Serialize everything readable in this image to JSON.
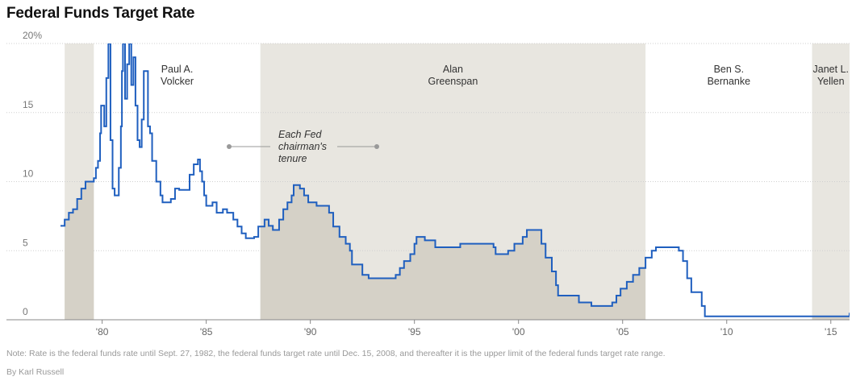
{
  "header": {
    "title": "Federal Funds Target Rate"
  },
  "chart_data": {
    "type": "line",
    "title": "Federal Funds Target Rate",
    "xlabel": "",
    "ylabel": "",
    "xlim": [
      1978.0,
      2015.9
    ],
    "ylim": [
      0,
      20
    ],
    "y_ticks": [
      {
        "value": 0,
        "label": "0"
      },
      {
        "value": 5,
        "label": "5"
      },
      {
        "value": 10,
        "label": "10"
      },
      {
        "value": 15,
        "label": "15"
      },
      {
        "value": 20,
        "label": "20%"
      }
    ],
    "x_ticks": [
      {
        "value": 1980,
        "label": "'80"
      },
      {
        "value": 1985,
        "label": "'85"
      },
      {
        "value": 1990,
        "label": "'90"
      },
      {
        "value": 1995,
        "label": "'95"
      },
      {
        "value": 2000,
        "label": "'00"
      },
      {
        "value": 2005,
        "label": "'05"
      },
      {
        "value": 2010,
        "label": "'10"
      },
      {
        "value": 2015,
        "label": "'15"
      }
    ],
    "tenures": [
      {
        "start": 1978.2,
        "end": 1979.6,
        "label": "",
        "shaded": true
      },
      {
        "start": 1979.6,
        "end": 1987.6,
        "label": "Paul A.\nVolcker",
        "shaded": false
      },
      {
        "start": 1987.6,
        "end": 2006.1,
        "label": "Alan\nGreenspan",
        "shaded": true
      },
      {
        "start": 2006.1,
        "end": 2014.1,
        "label": "Ben S.\nBernanke",
        "shaded": false
      },
      {
        "start": 2014.1,
        "end": 2015.9,
        "label": "Janet L.\nYellen",
        "shaded": true
      }
    ],
    "annotation": "Each Fed\nchairman's\ntenure",
    "series": [
      {
        "color": "#1f5fbf",
        "points": [
          [
            1978.0,
            6.8
          ],
          [
            1978.2,
            7.25
          ],
          [
            1978.4,
            7.75
          ],
          [
            1978.6,
            8.0
          ],
          [
            1978.8,
            8.75
          ],
          [
            1979.0,
            9.5
          ],
          [
            1979.2,
            10.0
          ],
          [
            1979.6,
            10.25
          ],
          [
            1979.7,
            11.0
          ],
          [
            1979.8,
            11.5
          ],
          [
            1979.9,
            13.5
          ],
          [
            1979.95,
            15.5
          ],
          [
            1980.1,
            14.0
          ],
          [
            1980.2,
            17.5
          ],
          [
            1980.3,
            20.0
          ],
          [
            1980.4,
            13.0
          ],
          [
            1980.5,
            9.5
          ],
          [
            1980.6,
            9.0
          ],
          [
            1980.8,
            11.0
          ],
          [
            1980.9,
            14.0
          ],
          [
            1980.95,
            18.0
          ],
          [
            1981.0,
            20.0
          ],
          [
            1981.1,
            16.0
          ],
          [
            1981.2,
            18.5
          ],
          [
            1981.3,
            20.0
          ],
          [
            1981.4,
            17.0
          ],
          [
            1981.5,
            19.0
          ],
          [
            1981.6,
            15.5
          ],
          [
            1981.7,
            13.0
          ],
          [
            1981.8,
            12.5
          ],
          [
            1981.9,
            14.5
          ],
          [
            1982.0,
            18.0
          ],
          [
            1982.2,
            14.0
          ],
          [
            1982.3,
            13.5
          ],
          [
            1982.4,
            11.5
          ],
          [
            1982.6,
            10.0
          ],
          [
            1982.8,
            9.0
          ],
          [
            1982.9,
            8.5
          ],
          [
            1983.3,
            8.75
          ],
          [
            1983.5,
            9.5
          ],
          [
            1983.7,
            9.4
          ],
          [
            1984.2,
            10.5
          ],
          [
            1984.4,
            11.25
          ],
          [
            1984.6,
            11.6
          ],
          [
            1984.7,
            10.75
          ],
          [
            1984.8,
            10.0
          ],
          [
            1984.9,
            9.0
          ],
          [
            1985.0,
            8.25
          ],
          [
            1985.3,
            8.5
          ],
          [
            1985.5,
            7.75
          ],
          [
            1985.8,
            8.0
          ],
          [
            1986.0,
            7.75
          ],
          [
            1986.3,
            7.25
          ],
          [
            1986.5,
            6.75
          ],
          [
            1986.7,
            6.25
          ],
          [
            1986.9,
            5.9
          ],
          [
            1987.3,
            6.0
          ],
          [
            1987.5,
            6.75
          ],
          [
            1987.8,
            7.25
          ],
          [
            1988.0,
            6.8
          ],
          [
            1988.2,
            6.5
          ],
          [
            1988.5,
            7.25
          ],
          [
            1988.7,
            8.0
          ],
          [
            1988.9,
            8.5
          ],
          [
            1989.1,
            9.0
          ],
          [
            1989.2,
            9.75
          ],
          [
            1989.5,
            9.5
          ],
          [
            1989.7,
            9.0
          ],
          [
            1989.9,
            8.5
          ],
          [
            1990.3,
            8.25
          ],
          [
            1990.9,
            7.75
          ],
          [
            1991.1,
            6.75
          ],
          [
            1991.4,
            6.0
          ],
          [
            1991.7,
            5.5
          ],
          [
            1991.9,
            5.0
          ],
          [
            1992.0,
            4.0
          ],
          [
            1992.5,
            3.25
          ],
          [
            1992.8,
            3.0
          ],
          [
            1994.1,
            3.25
          ],
          [
            1994.3,
            3.75
          ],
          [
            1994.5,
            4.25
          ],
          [
            1994.8,
            4.75
          ],
          [
            1995.0,
            5.5
          ],
          [
            1995.1,
            6.0
          ],
          [
            1995.5,
            5.75
          ],
          [
            1996.0,
            5.25
          ],
          [
            1997.2,
            5.5
          ],
          [
            1998.8,
            5.25
          ],
          [
            1998.9,
            4.75
          ],
          [
            1999.5,
            5.0
          ],
          [
            1999.8,
            5.5
          ],
          [
            2000.2,
            6.0
          ],
          [
            2000.4,
            6.5
          ],
          [
            2000.9,
            6.5
          ],
          [
            2001.1,
            5.5
          ],
          [
            2001.3,
            4.5
          ],
          [
            2001.6,
            3.5
          ],
          [
            2001.8,
            2.5
          ],
          [
            2001.9,
            1.75
          ],
          [
            2002.9,
            1.25
          ],
          [
            2003.5,
            1.0
          ],
          [
            2004.5,
            1.25
          ],
          [
            2004.7,
            1.75
          ],
          [
            2004.9,
            2.25
          ],
          [
            2005.2,
            2.75
          ],
          [
            2005.5,
            3.25
          ],
          [
            2005.8,
            3.75
          ],
          [
            2006.1,
            4.5
          ],
          [
            2006.4,
            5.0
          ],
          [
            2006.6,
            5.25
          ],
          [
            2007.7,
            5.0
          ],
          [
            2007.9,
            4.25
          ],
          [
            2008.1,
            3.0
          ],
          [
            2008.3,
            2.0
          ],
          [
            2008.8,
            1.0
          ],
          [
            2008.95,
            0.25
          ],
          [
            2015.85,
            0.25
          ],
          [
            2015.9,
            0.5
          ]
        ]
      }
    ]
  },
  "footer": {
    "note": "Note: Rate is the federal funds rate until Sept. 27, 1982, the federal funds target rate until Dec. 15, 2008, and thereafter it is the upper limit of the federal funds target rate range.",
    "byline": "By Karl Russell"
  },
  "colors": {
    "line": "#1f5fbf",
    "band_light": "#e8e6e0",
    "area_fill": "#d5d1c7",
    "grid": "#cfcfcf",
    "axis": "#888888"
  }
}
